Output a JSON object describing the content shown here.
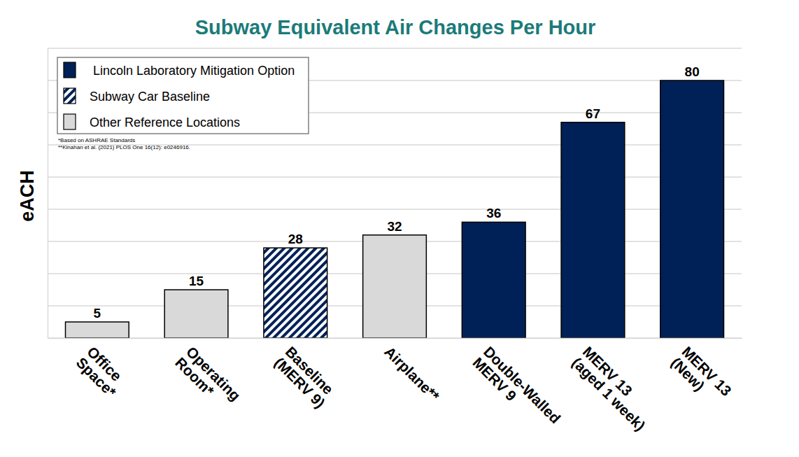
{
  "chart_data": {
    "type": "bar",
    "title": "Subway Equivalent Air Changes Per Hour",
    "y_label": "eACH",
    "categories": [
      "Office\nSpace*",
      "Operating\nRoom*",
      "Baseline\n(MERV 9)",
      "Airplane**",
      "Double-Walled\nMERV 9",
      "MERV 13\n(aged 1 week)",
      "MERV 13\n(New)"
    ],
    "series": [
      {
        "name": "Lincoln Laboratory Mitigation Option",
        "color": "#002157",
        "values": [
          null,
          null,
          null,
          null,
          36,
          67,
          80
        ]
      },
      {
        "name": "Subway Car Baseline",
        "color": "#002157",
        "marker": "hatch",
        "values": [
          null,
          null,
          28,
          null,
          null,
          null,
          null
        ]
      },
      {
        "name": "Other Reference Locations",
        "color": "#d9d9d9",
        "values": [
          5,
          15,
          null,
          32,
          null,
          null,
          null
        ]
      }
    ],
    "ylim": [
      0,
      90
    ],
    "yticks": [
      0,
      10,
      20,
      30,
      40,
      50,
      60,
      70,
      80,
      90
    ],
    "grid": true,
    "stacked": true,
    "data_labels": true,
    "tick_labels": "x",
    "legend": "upper left",
    "annotations": [
      "*Based on ASHRAE Standards",
      "**Kinahan et al. (2021) PLOS One 16(12): e0246916."
    ]
  }
}
